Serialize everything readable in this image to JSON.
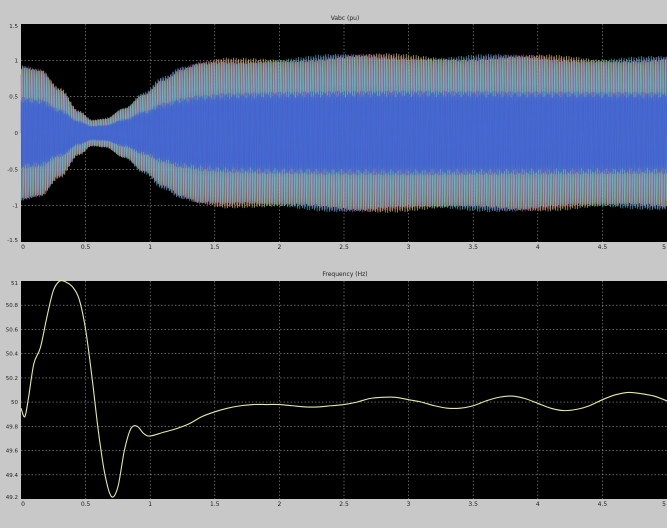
{
  "chart_data": [
    {
      "type": "line",
      "title": "Vabc (pu)",
      "xlabel": "",
      "ylabel": "",
      "xlim": [
        0,
        5
      ],
      "ylim": [
        -1.5,
        1.5
      ],
      "x_ticks": [
        "0",
        "0.5",
        "1",
        "1.5",
        "2",
        "2.5",
        "3",
        "3.5",
        "4",
        "4.5",
        "5"
      ],
      "y_ticks": [
        "1.5",
        "1",
        "0.5",
        "0",
        "-0.5",
        "-1",
        "-1.5"
      ],
      "grid": true,
      "background": "#000000",
      "series_colors": [
        "#d8d848",
        "#c040c0",
        "#40c8d0",
        "#3a5cd8"
      ],
      "envelope": {
        "x": [
          0,
          0.15,
          0.3,
          0.45,
          0.55,
          0.65,
          0.8,
          0.95,
          1.1,
          1.25,
          1.4,
          1.6,
          2.0,
          2.5,
          3.0,
          3.5,
          4.0,
          4.5,
          5.0
        ],
        "amplitude": [
          0.9,
          0.85,
          0.6,
          0.3,
          0.18,
          0.2,
          0.35,
          0.55,
          0.75,
          0.88,
          0.95,
          1.0,
          1.03,
          1.05,
          1.06,
          1.05,
          1.04,
          1.03,
          1.02
        ]
      }
    },
    {
      "type": "line",
      "title": "Frequency (Hz)",
      "xlabel": "",
      "ylabel": "",
      "xlim": [
        0,
        5
      ],
      "ylim": [
        49.2,
        51
      ],
      "x_ticks": [
        "0",
        "0.5",
        "1",
        "1.5",
        "2",
        "2.5",
        "3",
        "3.5",
        "4",
        "4.5",
        "5"
      ],
      "y_ticks": [
        "51",
        "50.8",
        "50.6",
        "50.4",
        "50.2",
        "50",
        "49.8",
        "49.6",
        "49.4",
        "49.2"
      ],
      "grid": true,
      "background": "#000000",
      "line_color": "#e8e8a0",
      "series": [
        {
          "x": [
            0,
            0.03,
            0.06,
            0.1,
            0.15,
            0.2,
            0.25,
            0.3,
            0.35,
            0.4,
            0.45,
            0.5,
            0.55,
            0.6,
            0.65,
            0.7,
            0.75,
            0.8,
            0.85,
            0.9,
            0.95,
            1.0,
            1.1,
            1.2,
            1.3,
            1.4,
            1.5,
            1.6,
            1.7,
            1.8,
            1.9,
            2.0,
            2.1,
            2.2,
            2.3,
            2.4,
            2.5,
            2.6,
            2.7,
            2.8,
            2.9,
            3.0,
            3.1,
            3.2,
            3.3,
            3.4,
            3.5,
            3.6,
            3.7,
            3.8,
            3.9,
            4.0,
            4.1,
            4.2,
            4.3,
            4.4,
            4.5,
            4.6,
            4.7,
            4.8,
            4.9,
            5.0
          ],
          "values": [
            49.95,
            49.88,
            50.05,
            50.32,
            50.45,
            50.7,
            50.92,
            51.0,
            50.99,
            50.95,
            50.85,
            50.6,
            50.2,
            49.75,
            49.4,
            49.22,
            49.3,
            49.6,
            49.78,
            49.8,
            49.74,
            49.72,
            49.75,
            49.78,
            49.82,
            49.88,
            49.92,
            49.95,
            49.97,
            49.98,
            49.98,
            49.98,
            49.97,
            49.96,
            49.96,
            49.97,
            49.98,
            50.0,
            50.03,
            50.04,
            50.04,
            50.02,
            50.0,
            49.97,
            49.95,
            49.95,
            49.97,
            50.01,
            50.04,
            50.05,
            50.03,
            49.99,
            49.95,
            49.93,
            49.94,
            49.97,
            50.02,
            50.06,
            50.08,
            50.07,
            50.05,
            50.01
          ]
        }
      ]
    }
  ]
}
